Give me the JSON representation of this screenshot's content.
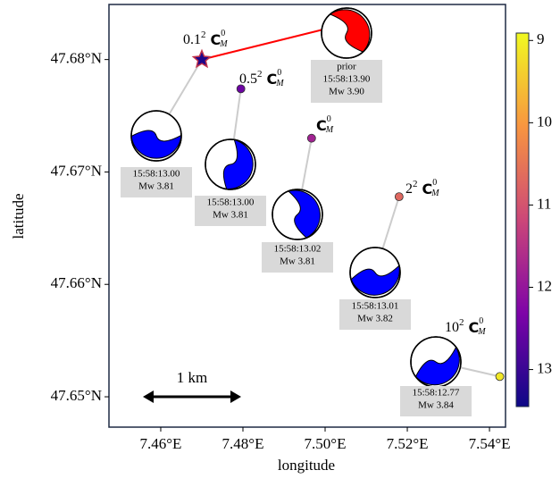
{
  "chart_data": {
    "type": "scatter",
    "xlabel": "longitude",
    "ylabel": "latitude",
    "x": [
      7.47,
      7.4795,
      7.4967,
      7.518,
      7.5425
    ],
    "y": [
      47.68,
      47.6774,
      47.673,
      47.6678,
      47.6518
    ],
    "c": [
      13.3,
      12.5,
      11.8,
      10.7,
      9.1
    ],
    "markers": [
      "star",
      "circle",
      "circle",
      "circle",
      "circle"
    ],
    "xlim": [
      7.4474,
      7.5439
    ],
    "ylim": [
      47.6473,
      47.6849
    ],
    "xticks": [
      {
        "value": 7.46,
        "label": "7.46°E"
      },
      {
        "value": 7.48,
        "label": "7.48°E"
      },
      {
        "value": 7.5,
        "label": "7.50°E"
      },
      {
        "value": 7.52,
        "label": "7.52°E"
      },
      {
        "value": 7.54,
        "label": "7.54°E"
      }
    ],
    "yticks": [
      {
        "value": 47.65,
        "label": "47.65°N"
      },
      {
        "value": 47.66,
        "label": "47.66°N"
      },
      {
        "value": 47.67,
        "label": "47.67°N"
      },
      {
        "value": 47.68,
        "label": "47.68°N"
      }
    ],
    "colorbar": {
      "cmap": "plasma_r",
      "clim": [
        8.91,
        13.45
      ],
      "ticks": [
        9,
        10,
        11,
        12,
        13
      ]
    },
    "label_coefs": [
      "0.1",
      "0.5",
      null,
      "2",
      "10"
    ],
    "label_powers": [
      "2",
      "2",
      null,
      "2",
      "2"
    ],
    "symbol": {
      "base": "C",
      "sup": "0",
      "sub": "M"
    },
    "events": [
      {
        "time": "15:58:13.00",
        "mw": "Mw 3.81"
      },
      {
        "time": "15:58:13.00",
        "mw": "Mw 3.81"
      },
      {
        "time": "15:58:13.02",
        "mw": "Mw 3.81"
      },
      {
        "time": "15:58:13.01",
        "mw": "Mw 3.82"
      },
      {
        "time": "15:58:12.77",
        "mw": "Mw 3.84"
      }
    ],
    "prior": {
      "title": "prior",
      "time": "15:58:13.90",
      "mw": "Mw 3.90",
      "color": "#ff0000"
    },
    "mechanism_color": "#0000ff",
    "scale_bar": "1 km"
  }
}
